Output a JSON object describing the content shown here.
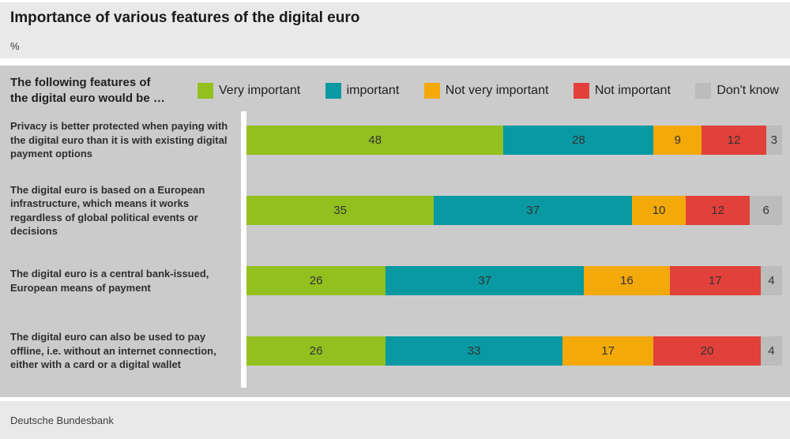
{
  "header": {
    "title": "Importance of various features of the digital euro",
    "unit": "%"
  },
  "legend": {
    "intro_line1": "The following features of",
    "intro_line2": "the digital euro would be …"
  },
  "footer": {
    "source": "Deutsche Bundesbank"
  },
  "colors": {
    "panel_bg": "#e9e9e9",
    "plot_bg": "#cbcbcb",
    "separator": "#ffffff",
    "very_important": "#93c01f",
    "important": "#0899a2",
    "not_very_important": "#f3a909",
    "not_important": "#e2403a",
    "dont_know": "#bcbcbc",
    "value_text": "#333333"
  },
  "chart_data": {
    "type": "bar",
    "orientation": "horizontal",
    "stacked": true,
    "title": "Importance of various features of the digital euro",
    "unit": "%",
    "xlim": [
      0,
      100
    ],
    "grid": false,
    "legend_position": "top",
    "categories": [
      "Privacy is better protected when paying with the digital euro than it is with existing digital payment options",
      "The digital euro is based on a European infrastructure, which means it works regardless of global political events or decisions",
      "The digital euro is a central bank-issued, European means of payment",
      "The digital euro can also be used to pay offline, i.e. without an internet connection, either with a card or a digital wallet"
    ],
    "series": [
      {
        "name": "Very important",
        "color": "#93c01f",
        "values": [
          48,
          35,
          26,
          26
        ]
      },
      {
        "name": "important",
        "color": "#0899a2",
        "values": [
          28,
          37,
          37,
          33
        ]
      },
      {
        "name": "Not very important",
        "color": "#f3a909",
        "values": [
          9,
          10,
          16,
          17
        ]
      },
      {
        "name": "Not important",
        "color": "#e2403a",
        "values": [
          12,
          12,
          17,
          20
        ]
      },
      {
        "name": "Don't know",
        "color": "#bcbcbc",
        "values": [
          3,
          6,
          4,
          4
        ]
      }
    ]
  }
}
